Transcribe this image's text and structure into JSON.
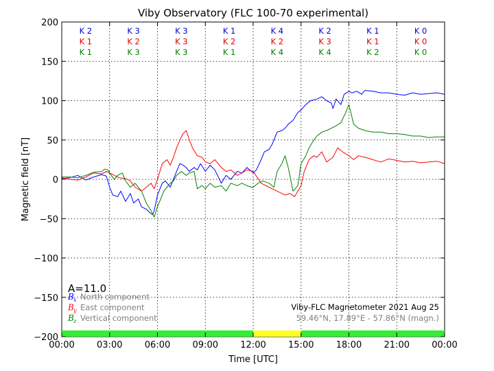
{
  "chart_data": {
    "type": "line",
    "title": "Viby Observatory (FLC 100-70 experimental)",
    "xlabel": "Time [UTC]",
    "ylabel": "Magnetic field [nT]",
    "xlim": [
      0,
      24
    ],
    "ylim": [
      -200,
      200
    ],
    "grid": true,
    "x_ticks": [
      0,
      3,
      6,
      9,
      12,
      15,
      18,
      21,
      24
    ],
    "x_tick_labels": [
      "00:00",
      "03:00",
      "06:00",
      "09:00",
      "12:00",
      "15:00",
      "18:00",
      "21:00",
      "00:00"
    ],
    "y_ticks": [
      -200,
      -150,
      -100,
      -50,
      0,
      50,
      100,
      150,
      200
    ],
    "y_tick_labels": [
      "−200",
      "−150",
      "−100",
      "−50",
      "0",
      "50",
      "100",
      "150",
      "200"
    ],
    "k_index": {
      "rows": [
        {
          "color": "#0000cc",
          "labels": [
            "K 2",
            "K 3",
            "K 3",
            "K 1",
            "K 4",
            "K 2",
            "K 1",
            "K 0"
          ]
        },
        {
          "color": "#dd0000",
          "labels": [
            "K 1",
            "K 2",
            "K 3",
            "K 2",
            "K 2",
            "K 3",
            "K 1",
            "K 0"
          ]
        },
        {
          "color": "#008000",
          "labels": [
            "K 1",
            "K 3",
            "K 3",
            "K 1",
            "K 4",
            "K 4",
            "K 2",
            "K 0"
          ]
        }
      ]
    },
    "activity_bar": [
      {
        "from": 0,
        "to": 12,
        "color": "#33ee33"
      },
      {
        "from": 12,
        "to": 15,
        "color": "#ffff22"
      },
      {
        "from": 15,
        "to": 24,
        "color": "#33ee33"
      }
    ],
    "a_index": "A=11.0",
    "legend": [
      {
        "symbol": "B",
        "sub": "x",
        "text": "North component",
        "color": "#0000ff"
      },
      {
        "symbol": "B",
        "sub": "y",
        "text": "East component",
        "color": "#ff0000"
      },
      {
        "symbol": "B",
        "sub": "z",
        "text": "Vertical component",
        "color": "#008000"
      }
    ],
    "info_line1": "Viby-FLC Magnetometer 2021 Aug 25",
    "info_line2": "59.46°N, 17.89°E - 57.86°N (magn.)",
    "series": [
      {
        "color": "#0000ff",
        "x": [
          0,
          0.5,
          1,
          1.5,
          2,
          2.5,
          2.8,
          3,
          3.2,
          3.5,
          3.7,
          4,
          4.3,
          4.5,
          4.8,
          5,
          5.3,
          5.5,
          5.7,
          5.8,
          6,
          6.3,
          6.5,
          6.8,
          7,
          7.2,
          7.4,
          7.6,
          7.8,
          8,
          8.3,
          8.5,
          8.7,
          9,
          9.3,
          9.6,
          10,
          10.3,
          10.6,
          11,
          11.3,
          11.6,
          11.9,
          12,
          12.2,
          12.5,
          12.7,
          13,
          13.2,
          13.5,
          13.8,
          14,
          14.2,
          14.5,
          14.8,
          15,
          15.3,
          15.6,
          16,
          16.3,
          16.6,
          16.9,
          17,
          17.2,
          17.5,
          17.7,
          18,
          18.2,
          18.5,
          18.8,
          19,
          19.5,
          20,
          20.5,
          21,
          21.5,
          22,
          22.5,
          23,
          23.5,
          24
        ],
        "y": [
          1,
          2,
          5,
          -1,
          3,
          6,
          4,
          -10,
          -20,
          -22,
          -15,
          -28,
          -18,
          -30,
          -25,
          -35,
          -38,
          -42,
          -45,
          -40,
          -20,
          -5,
          -2,
          -10,
          0,
          10,
          20,
          18,
          15,
          10,
          15,
          12,
          20,
          10,
          18,
          12,
          -5,
          5,
          0,
          10,
          8,
          15,
          10,
          8,
          12,
          25,
          35,
          38,
          45,
          60,
          62,
          65,
          70,
          75,
          85,
          88,
          95,
          100,
          102,
          105,
          100,
          97,
          90,
          102,
          95,
          108,
          112,
          110,
          112,
          108,
          113,
          112,
          110,
          110,
          108,
          107,
          110,
          108,
          109,
          110,
          108
        ]
      },
      {
        "color": "#ff0000",
        "x": [
          0,
          0.5,
          1,
          1.5,
          2,
          2.5,
          2.8,
          3,
          3.3,
          3.6,
          4,
          4.3,
          4.6,
          5,
          5.3,
          5.6,
          5.8,
          6,
          6.3,
          6.6,
          6.8,
          7,
          7.2,
          7.4,
          7.6,
          7.8,
          8,
          8.2,
          8.5,
          8.8,
          9,
          9.3,
          9.6,
          10,
          10.3,
          10.6,
          11,
          11.3,
          11.6,
          12,
          12.5,
          13,
          13.5,
          14,
          14.3,
          14.6,
          15,
          15.2,
          15.5,
          15.8,
          16,
          16.3,
          16.6,
          17,
          17.3,
          17.6,
          18,
          18.3,
          18.6,
          19,
          19.5,
          20,
          20.5,
          21,
          21.5,
          22,
          22.5,
          23,
          23.5,
          24
        ],
        "y": [
          2,
          0,
          -1,
          3,
          8,
          7,
          10,
          8,
          5,
          2,
          1,
          -2,
          -10,
          -15,
          -10,
          -5,
          -12,
          0,
          20,
          25,
          18,
          28,
          40,
          50,
          58,
          62,
          50,
          40,
          30,
          28,
          22,
          20,
          25,
          15,
          10,
          12,
          5,
          8,
          12,
          10,
          -5,
          -10,
          -15,
          -20,
          -18,
          -22,
          -8,
          10,
          25,
          30,
          28,
          35,
          22,
          28,
          40,
          35,
          30,
          25,
          30,
          28,
          25,
          22,
          26,
          24,
          22,
          23,
          21,
          22,
          23,
          20
        ]
      },
      {
        "color": "#008000",
        "x": [
          0,
          0.5,
          1,
          1.5,
          2,
          2.5,
          2.7,
          2.9,
          3.1,
          3.3,
          3.5,
          3.8,
          4,
          4.3,
          4.6,
          5,
          5.3,
          5.6,
          5.8,
          6,
          6.2,
          6.4,
          6.6,
          6.8,
          7,
          7.2,
          7.5,
          7.8,
          8,
          8.3,
          8.5,
          8.8,
          9,
          9.3,
          9.6,
          10,
          10.3,
          10.6,
          11,
          11.3,
          11.6,
          11.9,
          12,
          12.3,
          12.6,
          13,
          13.3,
          13.5,
          13.8,
          14,
          14.2,
          14.5,
          14.8,
          15,
          15.3,
          15.5,
          15.8,
          16,
          16.3,
          16.6,
          16.9,
          17.2,
          17.5,
          17.8,
          18,
          18.3,
          18.6,
          19,
          19.5,
          20,
          20.5,
          21,
          21.5,
          22,
          22.5,
          23,
          23.5,
          24
        ],
        "y": [
          3,
          3,
          2,
          5,
          9,
          10,
          13,
          12,
          5,
          0,
          5,
          8,
          -2,
          -10,
          -5,
          -15,
          -30,
          -40,
          -48,
          -35,
          -25,
          -15,
          -10,
          -5,
          -2,
          5,
          10,
          5,
          8,
          10,
          -12,
          -8,
          -12,
          -5,
          -10,
          -8,
          -15,
          -5,
          -8,
          -5,
          -8,
          -10,
          -10,
          -5,
          -2,
          -5,
          -10,
          10,
          20,
          30,
          15,
          -15,
          -8,
          20,
          30,
          40,
          50,
          55,
          60,
          62,
          65,
          68,
          72,
          85,
          95,
          70,
          65,
          62,
          60,
          60,
          58,
          58,
          57,
          55,
          55,
          53,
          54,
          54
        ]
      }
    ]
  }
}
